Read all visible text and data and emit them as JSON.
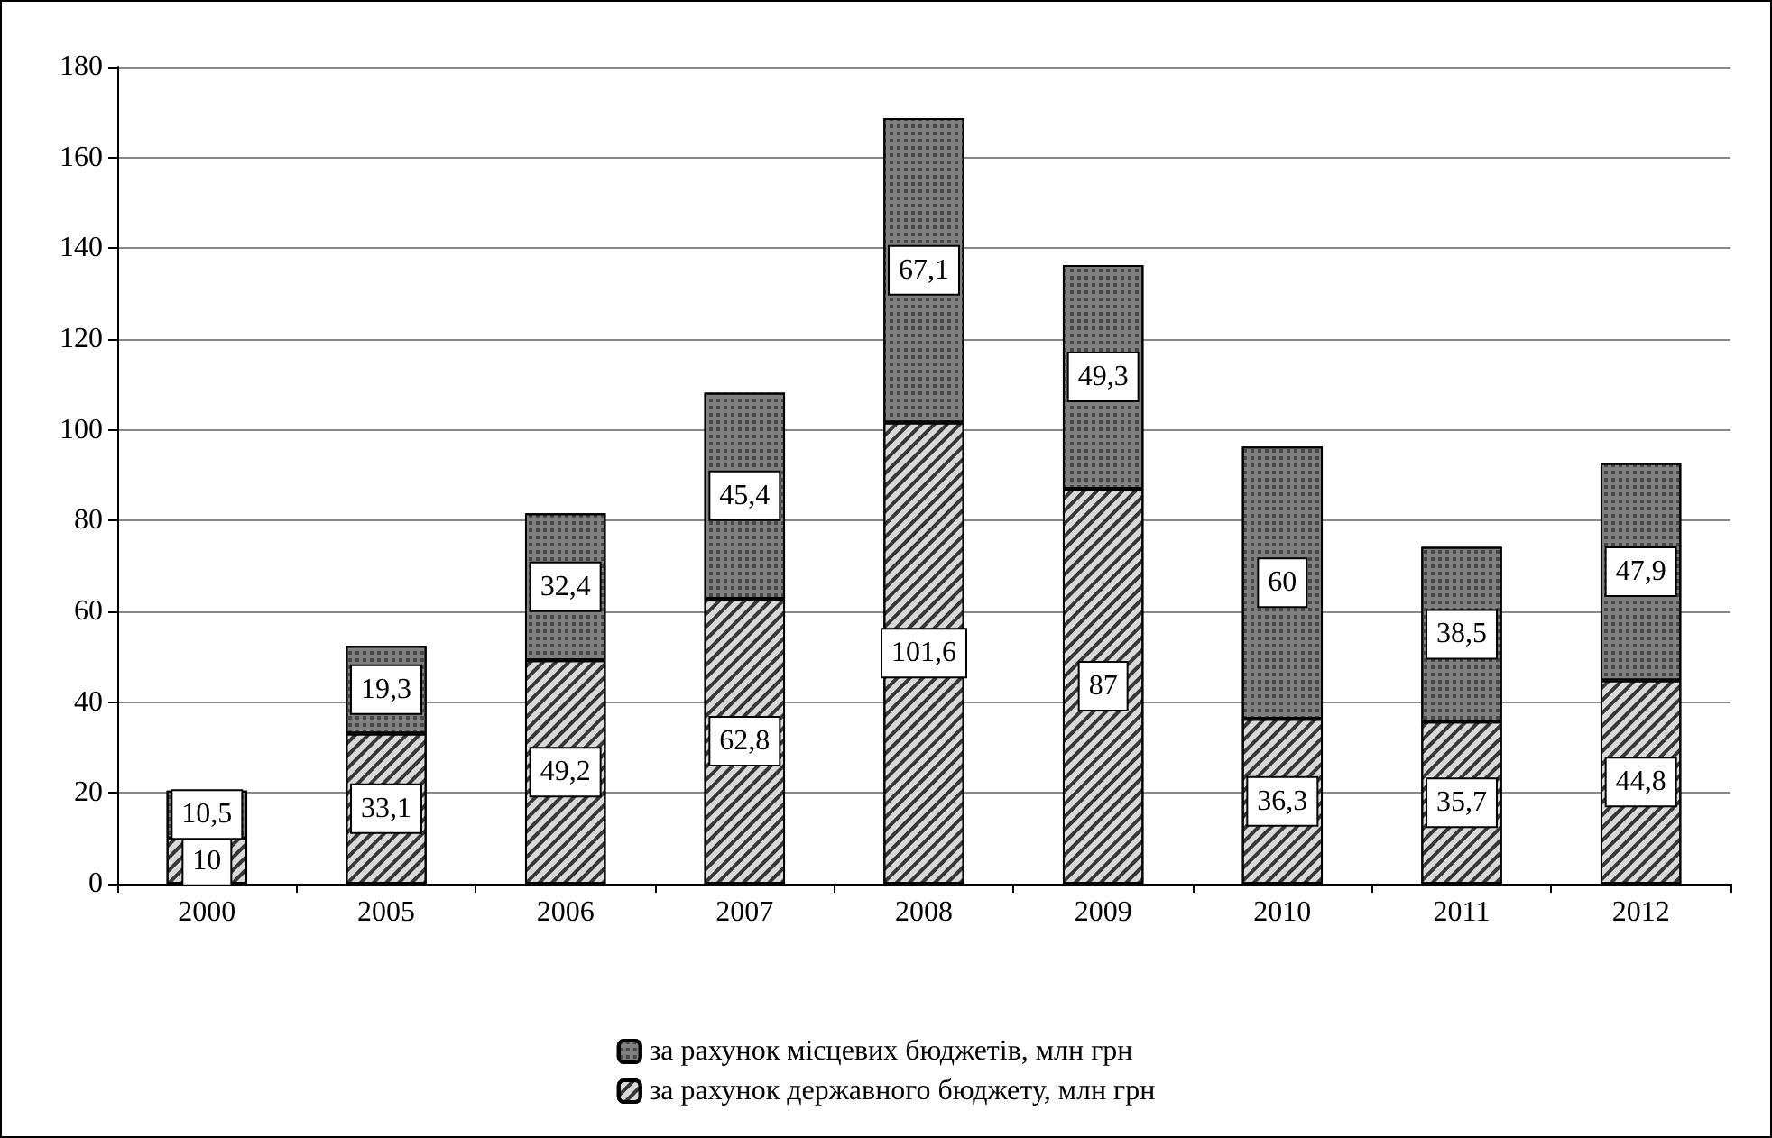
{
  "chart_data": {
    "type": "bar",
    "stacked": true,
    "categories": [
      "2000",
      "2005",
      "2006",
      "2007",
      "2008",
      "2009",
      "2010",
      "2011",
      "2012"
    ],
    "series": [
      {
        "name": "за рахунок державного бюджету, млн грн",
        "color": "#d9d9d9",
        "values": [
          10,
          33.1,
          49.2,
          62.8,
          101.6,
          87,
          36.3,
          35.7,
          44.8
        ],
        "value_labels": [
          "10",
          "33,1",
          "49,2",
          "62,8",
          "101,6",
          "87",
          "36,3",
          "35,7",
          "44,8"
        ]
      },
      {
        "name": "за рахунок місцевих бюджетів, млн грн",
        "color": "#808080",
        "values": [
          10.5,
          19.3,
          32.4,
          45.4,
          67.1,
          49.3,
          60,
          38.5,
          47.9
        ],
        "value_labels": [
          "10,5",
          "19,3",
          "32,4",
          "45,4",
          "67,1",
          "49,3",
          "60",
          "38,5",
          "47,9"
        ]
      }
    ],
    "ylim": [
      0,
      180
    ],
    "yticks": [
      0,
      20,
      40,
      60,
      80,
      100,
      120,
      140,
      160,
      180
    ],
    "grid": "y",
    "legend": "bottom"
  }
}
